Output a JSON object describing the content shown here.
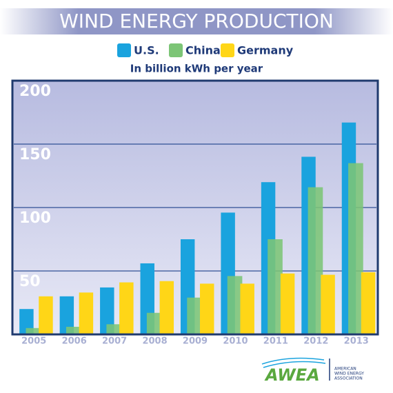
{
  "chart_data": {
    "type": "bar",
    "title": "WIND ENERGY PRODUCTION",
    "subtitle": "In billion kWh per year",
    "categories": [
      "2005",
      "2006",
      "2007",
      "2008",
      "2009",
      "2010",
      "2011",
      "2012",
      "2013"
    ],
    "series": [
      {
        "name": "U.S.",
        "color": "#1aa3de",
        "values": [
          20,
          30,
          37,
          56,
          75,
          96,
          120,
          140,
          167
        ]
      },
      {
        "name": "China",
        "color": "#7cc576",
        "values": [
          5,
          6,
          8,
          17,
          29,
          46,
          75,
          116,
          135
        ]
      },
      {
        "name": "Germany",
        "color": "#ffd617",
        "values": [
          30,
          33,
          41,
          42,
          40,
          40,
          48,
          47,
          49
        ]
      }
    ],
    "ylim": [
      0,
      200
    ],
    "yticks": [
      50,
      100,
      150,
      200
    ],
    "grid": true
  },
  "logo": {
    "name": "AWEA",
    "tagline": [
      "AMERICAN",
      "WIND ENERGY",
      "ASSOCIATION"
    ]
  }
}
